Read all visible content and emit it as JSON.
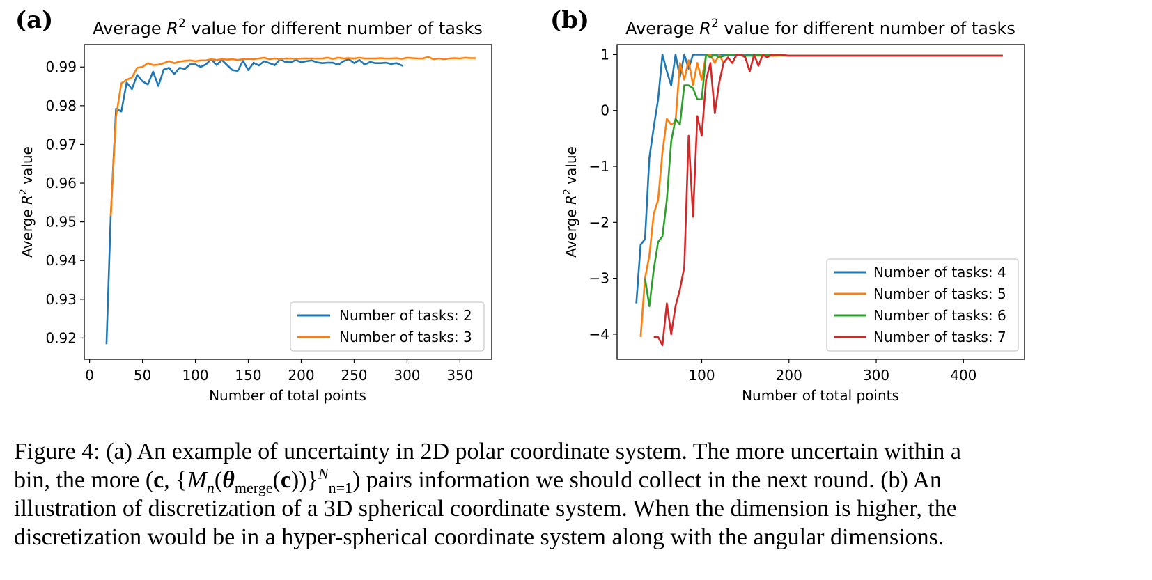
{
  "panels": [
    {
      "label": "(a)",
      "title": "Average R² value for different number of tasks",
      "title_pre": "Average ",
      "title_var": "R",
      "title_sup": "2",
      "title_post": " value for different number of tasks",
      "xlabel": "Number of total points",
      "ylabel_pre": "Averge ",
      "ylabel_var": "R",
      "ylabel_sup": "2",
      "ylabel_post": " value",
      "legend_position": "lower-right"
    },
    {
      "label": "(b)",
      "title": "Average R² value for different number of tasks",
      "title_pre": "Average ",
      "title_var": "R",
      "title_sup": "2",
      "title_post": " value for different number of tasks",
      "xlabel": "Number of total points",
      "ylabel_pre": "Averge ",
      "ylabel_var": "R",
      "ylabel_sup": "2",
      "ylabel_post": " value",
      "legend_position": "lower-right"
    }
  ],
  "chart_data": [
    {
      "type": "line",
      "title": "Average R^2 value for different number of tasks",
      "xlabel": "Number of total points",
      "ylabel": "Averge R^2 value",
      "xlim": [
        -5,
        380
      ],
      "ylim": [
        0.9145,
        0.9958
      ],
      "xticks": [
        0,
        50,
        100,
        150,
        200,
        250,
        300,
        350
      ],
      "xtick_labels": [
        "0",
        "50",
        "100",
        "150",
        "200",
        "250",
        "300",
        "350"
      ],
      "yticks": [
        0.92,
        0.93,
        0.94,
        0.95,
        0.96,
        0.97,
        0.98,
        0.99
      ],
      "ytick_labels": [
        "0.92",
        "0.93",
        "0.94",
        "0.95",
        "0.96",
        "0.97",
        "0.98",
        "0.99"
      ],
      "grid": false,
      "legend": "lower-right",
      "series": [
        {
          "name": "Number of tasks: 2",
          "color": "#1f77b4",
          "x": [
            16,
            20,
            25,
            30,
            35,
            40,
            45,
            50,
            55,
            60,
            65,
            70,
            75,
            80,
            85,
            90,
            95,
            100,
            105,
            110,
            115,
            120,
            125,
            130,
            135,
            140,
            145,
            150,
            155,
            160,
            165,
            170,
            175,
            180,
            185,
            190,
            195,
            200,
            205,
            210,
            215,
            220,
            225,
            230,
            235,
            240,
            245,
            250,
            255,
            260,
            265,
            270,
            275,
            280,
            285,
            290,
            296
          ],
          "y": [
            0.9184,
            0.9515,
            0.9792,
            0.9785,
            0.986,
            0.9843,
            0.988,
            0.9863,
            0.9855,
            0.9888,
            0.9851,
            0.9893,
            0.9898,
            0.9882,
            0.9898,
            0.9895,
            0.9907,
            0.9907,
            0.99,
            0.9907,
            0.992,
            0.9905,
            0.9918,
            0.9905,
            0.9892,
            0.989,
            0.9916,
            0.9892,
            0.9911,
            0.9904,
            0.9915,
            0.991,
            0.9905,
            0.992,
            0.9913,
            0.9912,
            0.9918,
            0.9912,
            0.9915,
            0.9917,
            0.9912,
            0.991,
            0.9911,
            0.9911,
            0.9906,
            0.9915,
            0.992,
            0.991,
            0.9918,
            0.9906,
            0.9913,
            0.991,
            0.991,
            0.9911,
            0.9908,
            0.991,
            0.9903
          ]
        },
        {
          "name": "Number of tasks: 3",
          "color": "#ff7f0e",
          "x": [
            20,
            25,
            30,
            35,
            40,
            45,
            50,
            55,
            60,
            65,
            70,
            75,
            80,
            85,
            90,
            95,
            100,
            105,
            110,
            115,
            120,
            125,
            130,
            135,
            140,
            145,
            150,
            155,
            160,
            165,
            170,
            175,
            180,
            185,
            190,
            195,
            200,
            205,
            210,
            215,
            220,
            225,
            230,
            235,
            240,
            245,
            250,
            255,
            260,
            265,
            270,
            275,
            280,
            285,
            290,
            295,
            300,
            305,
            310,
            315,
            320,
            325,
            330,
            335,
            340,
            345,
            350,
            355,
            360,
            365
          ],
          "y": [
            0.9515,
            0.9772,
            0.9858,
            0.9867,
            0.9873,
            0.9898,
            0.99,
            0.991,
            0.9905,
            0.9906,
            0.991,
            0.9915,
            0.991,
            0.9914,
            0.9916,
            0.9917,
            0.9915,
            0.9917,
            0.9917,
            0.992,
            0.9918,
            0.992,
            0.9919,
            0.992,
            0.9918,
            0.992,
            0.9921,
            0.992,
            0.9922,
            0.9924,
            0.992,
            0.9922,
            0.992,
            0.9922,
            0.9922,
            0.9921,
            0.9922,
            0.9922,
            0.9922,
            0.9922,
            0.9922,
            0.9924,
            0.9921,
            0.9924,
            0.9922,
            0.9923,
            0.9922,
            0.9924,
            0.9922,
            0.9922,
            0.9922,
            0.9923,
            0.9922,
            0.9922,
            0.9923,
            0.9921,
            0.9924,
            0.9923,
            0.9922,
            0.9922,
            0.9926,
            0.992,
            0.9922,
            0.992,
            0.9922,
            0.9923,
            0.9922,
            0.9924,
            0.9923,
            0.9923
          ]
        }
      ]
    },
    {
      "type": "line",
      "title": "Average R^2 value for different number of tasks",
      "xlabel": "Number of total points",
      "ylabel": "Averge R^2 value",
      "xlim": [
        3,
        470
      ],
      "ylim": [
        -4.45,
        1.18
      ],
      "xticks": [
        100,
        200,
        300,
        400
      ],
      "xtick_labels": [
        "100",
        "200",
        "300",
        "400"
      ],
      "yticks": [
        -4,
        -3,
        -2,
        -1,
        0,
        1
      ],
      "ytick_labels": [
        "−4",
        "−3",
        "−2",
        "−1",
        "0",
        "1"
      ],
      "grid": false,
      "legend": "lower-right",
      "series": [
        {
          "name": "Number of tasks: 4",
          "color": "#1f77b4",
          "x": [
            25,
            30,
            35,
            40,
            45,
            50,
            55,
            60,
            65,
            70,
            75,
            80,
            85,
            90,
            95,
            100,
            110,
            120,
            130,
            140,
            150,
            200,
            250,
            300,
            350,
            400,
            445
          ],
          "y": [
            -3.45,
            -2.4,
            -2.3,
            -0.85,
            -0.3,
            0.2,
            1.0,
            0.7,
            0.45,
            1.0,
            0.6,
            1.0,
            0.75,
            1.0,
            1.0,
            1.0,
            1.0,
            1.0,
            1.0,
            0.98,
            1.0,
            0.98,
            0.98,
            0.98,
            0.98,
            0.98,
            0.98
          ]
        },
        {
          "name": "Number of tasks: 5",
          "color": "#ff7f0e",
          "x": [
            30,
            35,
            40,
            45,
            50,
            55,
            60,
            65,
            70,
            75,
            80,
            85,
            90,
            95,
            100,
            105,
            110,
            115,
            120,
            125,
            130,
            135,
            140,
            150,
            160,
            200,
            250,
            300,
            350,
            400,
            445
          ],
          "y": [
            -4.05,
            -3.0,
            -2.6,
            -1.85,
            -1.6,
            -0.75,
            -0.15,
            -0.25,
            -0.2,
            0.85,
            0.55,
            0.9,
            0.45,
            0.85,
            0.55,
            1.0,
            1.0,
            0.85,
            1.0,
            0.85,
            0.95,
            0.85,
            1.0,
            0.98,
            0.98,
            0.98,
            0.98,
            0.98,
            0.98,
            0.98,
            0.98
          ]
        },
        {
          "name": "Number of tasks: 6",
          "color": "#2ca02c",
          "x": [
            35,
            40,
            45,
            50,
            55,
            60,
            65,
            70,
            75,
            80,
            85,
            90,
            95,
            100,
            105,
            110,
            115,
            120,
            130,
            140,
            150,
            180,
            200,
            250,
            300,
            350,
            400,
            445
          ],
          "y": [
            -3.0,
            -3.5,
            -2.85,
            -2.35,
            -2.25,
            -1.6,
            -0.55,
            -0.15,
            -0.25,
            0.45,
            0.45,
            0.4,
            0.2,
            0.2,
            1.0,
            0.95,
            1.0,
            0.95,
            1.0,
            1.0,
            0.98,
            1.0,
            0.98,
            0.98,
            0.98,
            0.98,
            0.98,
            0.98
          ]
        },
        {
          "name": "Number of tasks: 7",
          "color": "#d62728",
          "x": [
            45,
            50,
            55,
            60,
            65,
            70,
            75,
            80,
            85,
            90,
            95,
            100,
            105,
            110,
            115,
            120,
            125,
            130,
            135,
            140,
            145,
            150,
            155,
            160,
            165,
            170,
            175,
            180,
            190,
            200,
            250,
            300,
            350,
            400,
            445
          ],
          "y": [
            -4.05,
            -4.05,
            -4.2,
            -3.45,
            -4.0,
            -3.5,
            -3.2,
            -2.8,
            -0.45,
            -1.9,
            -0.1,
            -0.45,
            0.55,
            0.85,
            -0.05,
            0.5,
            0.85,
            0.95,
            0.85,
            1.0,
            1.0,
            0.95,
            0.7,
            1.0,
            0.8,
            1.0,
            0.95,
            1.0,
            1.0,
            0.98,
            0.98,
            0.98,
            0.98,
            0.98,
            0.98
          ]
        }
      ]
    }
  ],
  "caption": {
    "line1": "Figure 4: (a) An example of uncertainty in 2D polar coordinate system. The more uncertain within a",
    "line2_pre": "bin, the more (",
    "line2_c": "c",
    "line2_set_open": ", {",
    "line2_M": "M",
    "line2_n": "n",
    "line2_open": "(",
    "line2_theta": "θ",
    "line2_merge": "merge",
    "line2_c2": "c",
    "line2_close": "))}",
    "line2_sup": "N",
    "line2_sub": "n=1",
    "line2_post": ") pairs information we should collect in the next round. (b) An",
    "line3": "illustration of discretization of a 3D spherical coordinate system. When the dimension is higher, the",
    "line4": "discretization would be in a hyper-spherical coordinate system along with the angular dimensions."
  }
}
